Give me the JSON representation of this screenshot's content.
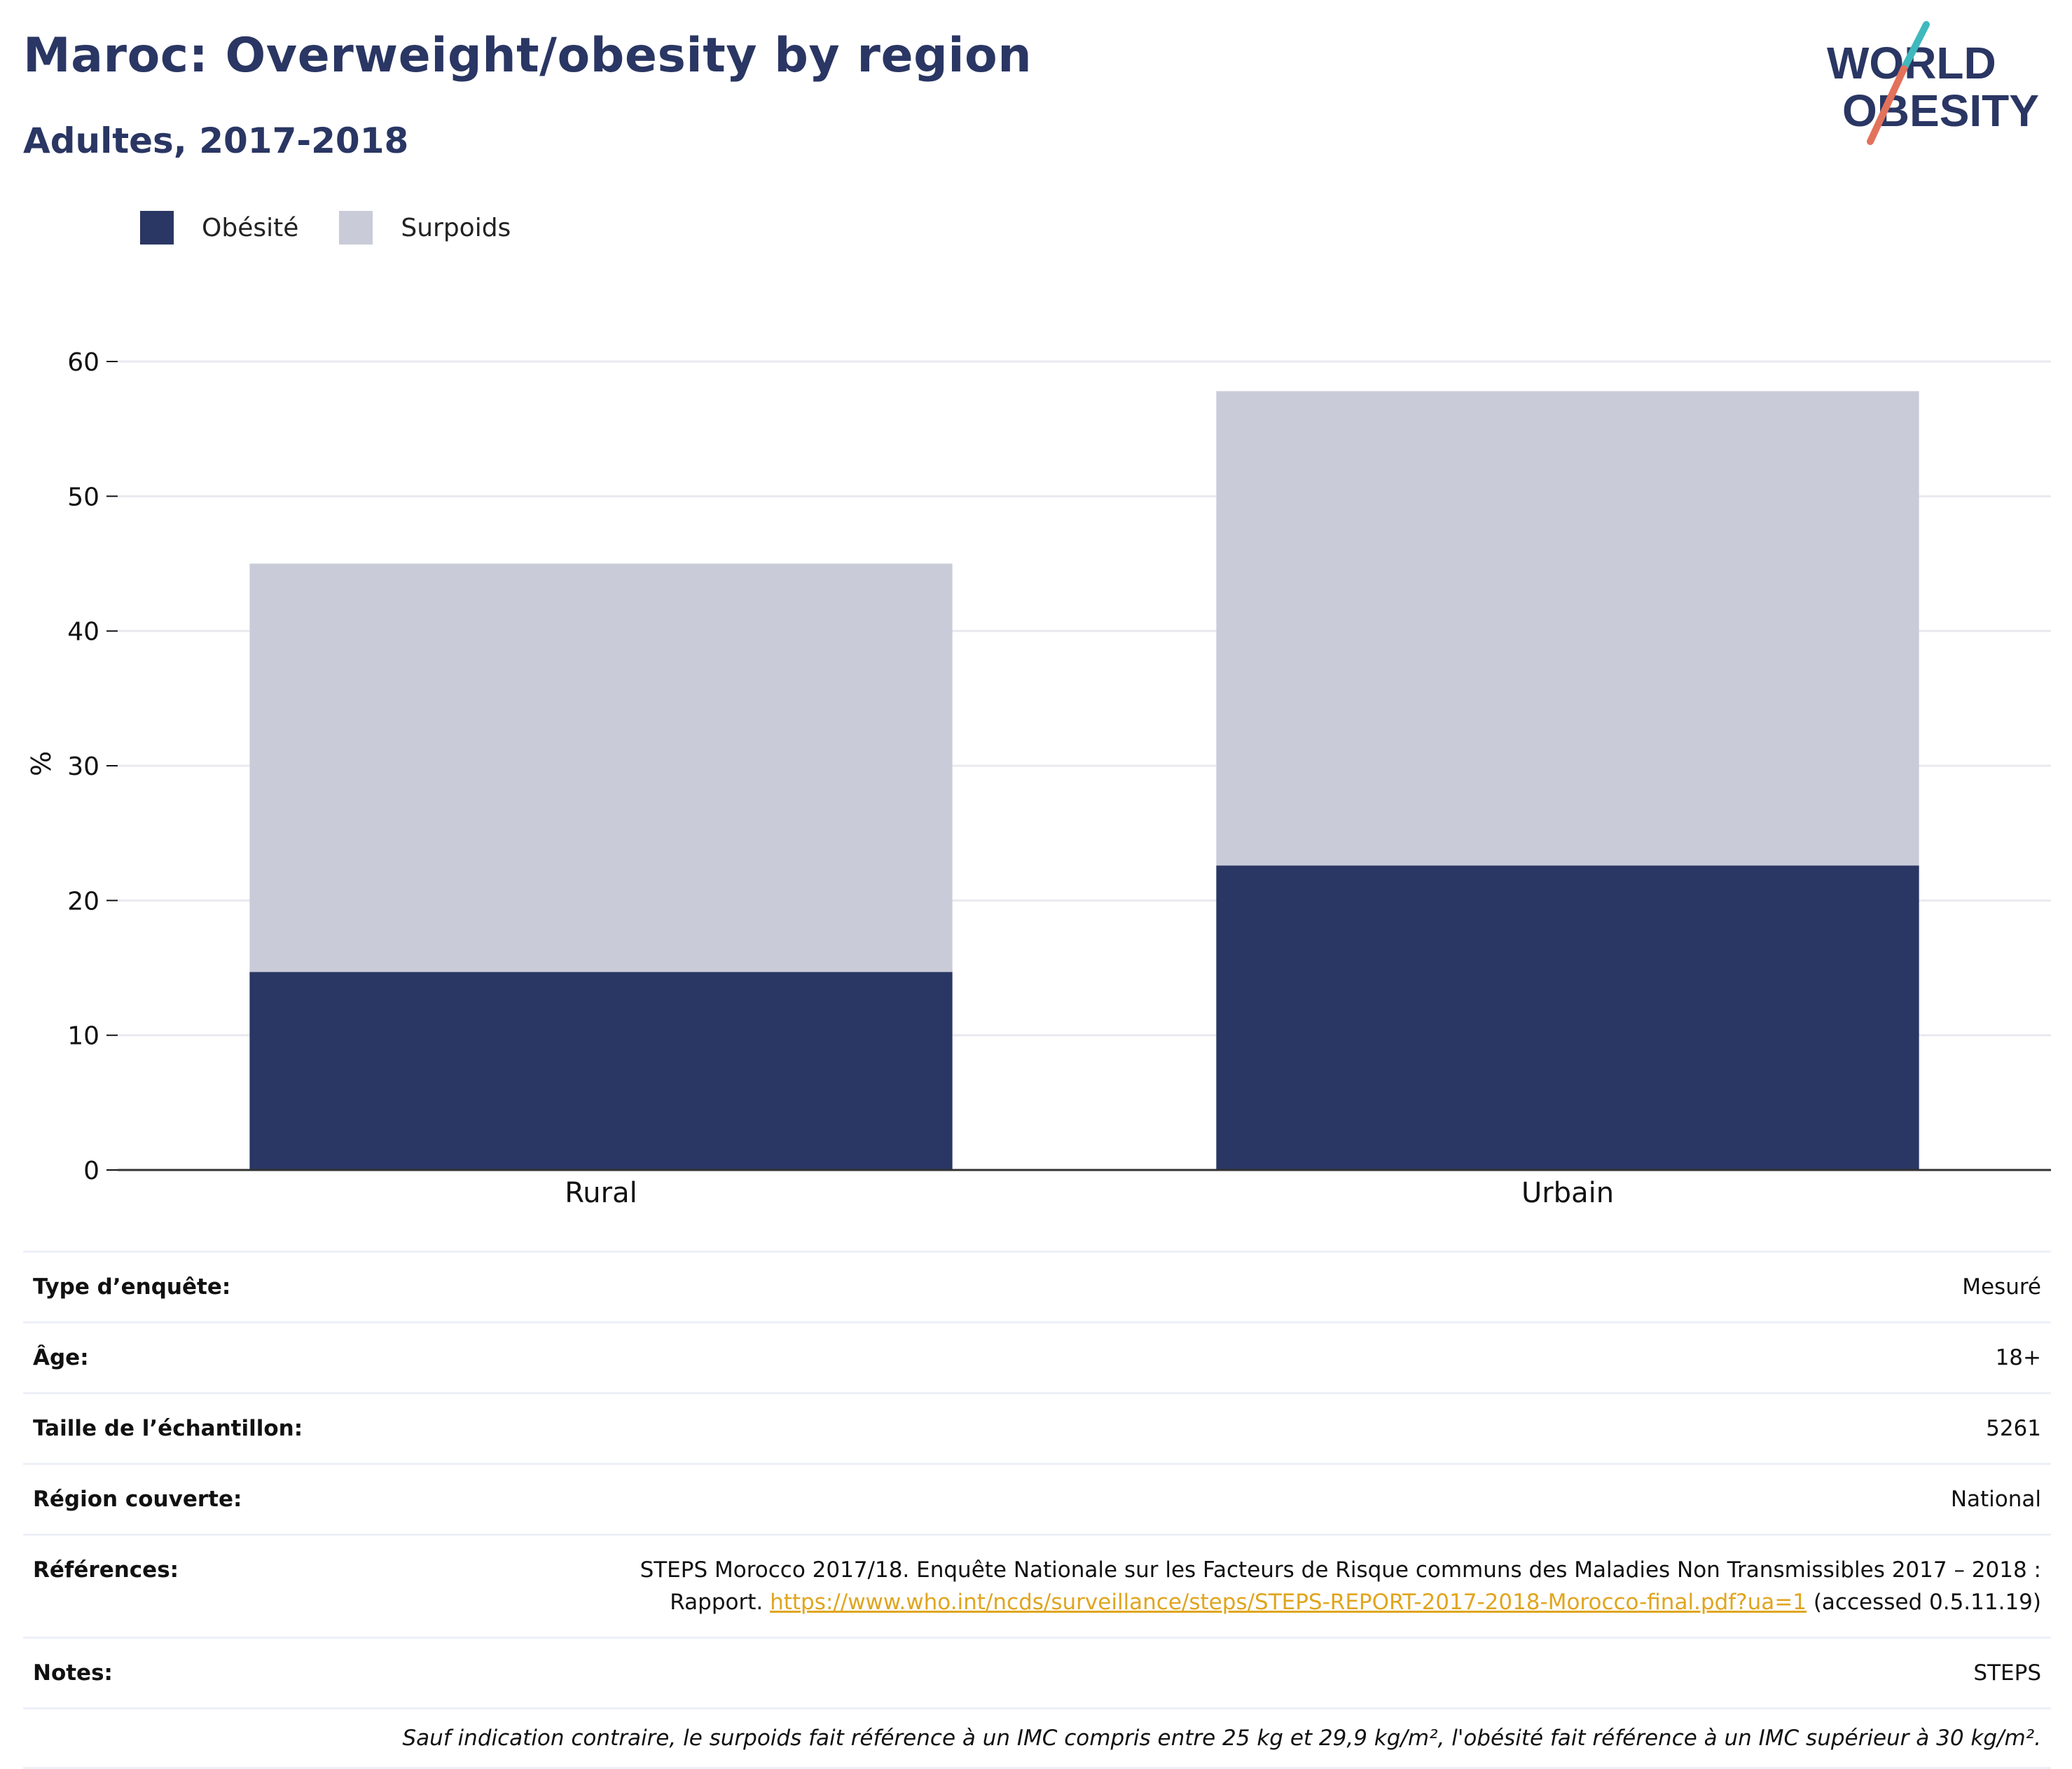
{
  "header": {
    "title": "Maroc: Overweight/obesity by region",
    "subtitle": "Adultes, 2017-2018"
  },
  "logo": {
    "line1": "WORLD",
    "line2": "OBESITY"
  },
  "legend": {
    "items": [
      {
        "label": "Obésité",
        "color": "#2a3663"
      },
      {
        "label": "Surpoids",
        "color": "#c9ccd8"
      }
    ]
  },
  "chart_data": {
    "type": "bar",
    "stacked": true,
    "categories": [
      "Rural",
      "Urbain"
    ],
    "series": [
      {
        "name": "Obésité",
        "values": [
          14.7,
          22.6
        ],
        "color": "#2a3663"
      },
      {
        "name": "Surpoids",
        "values": [
          30.3,
          35.2
        ],
        "color": "#c9ccd8"
      }
    ],
    "ylabel": "%",
    "ylim": [
      0,
      60
    ],
    "yticks": [
      0,
      10,
      20,
      30,
      40,
      50,
      60
    ],
    "grid": true,
    "legend_position": "top-left"
  },
  "info": {
    "rows": [
      {
        "key": "Type d’enquête:",
        "value": "Mesuré"
      },
      {
        "key": "Âge:",
        "value": "18+"
      },
      {
        "key": "Taille de l’échantillon:",
        "value": "5261"
      },
      {
        "key": "Région couverte:",
        "value": "National"
      }
    ],
    "references": {
      "key": "Références:",
      "text_line1": "STEPS Morocco 2017/18. Enquête Nationale sur les Facteurs de Risque communs des Maladies Non Transmissibles 2017 – 2018 :",
      "text_pre": "Rapport. ",
      "link": "https://www.who.int/ncds/surveillance/steps/STEPS-REPORT-2017-2018-Morocco-final.pdf?ua=1",
      "text_post": " (accessed 0.5.11.19)"
    },
    "notes": {
      "key": "Notes:",
      "value": "STEPS"
    },
    "footnote": "Sauf indication contraire, le surpoids fait référence à un IMC compris entre 25 kg et 29,9 kg/m², l'obésité fait référence à un IMC supérieur à 30 kg/m²."
  }
}
